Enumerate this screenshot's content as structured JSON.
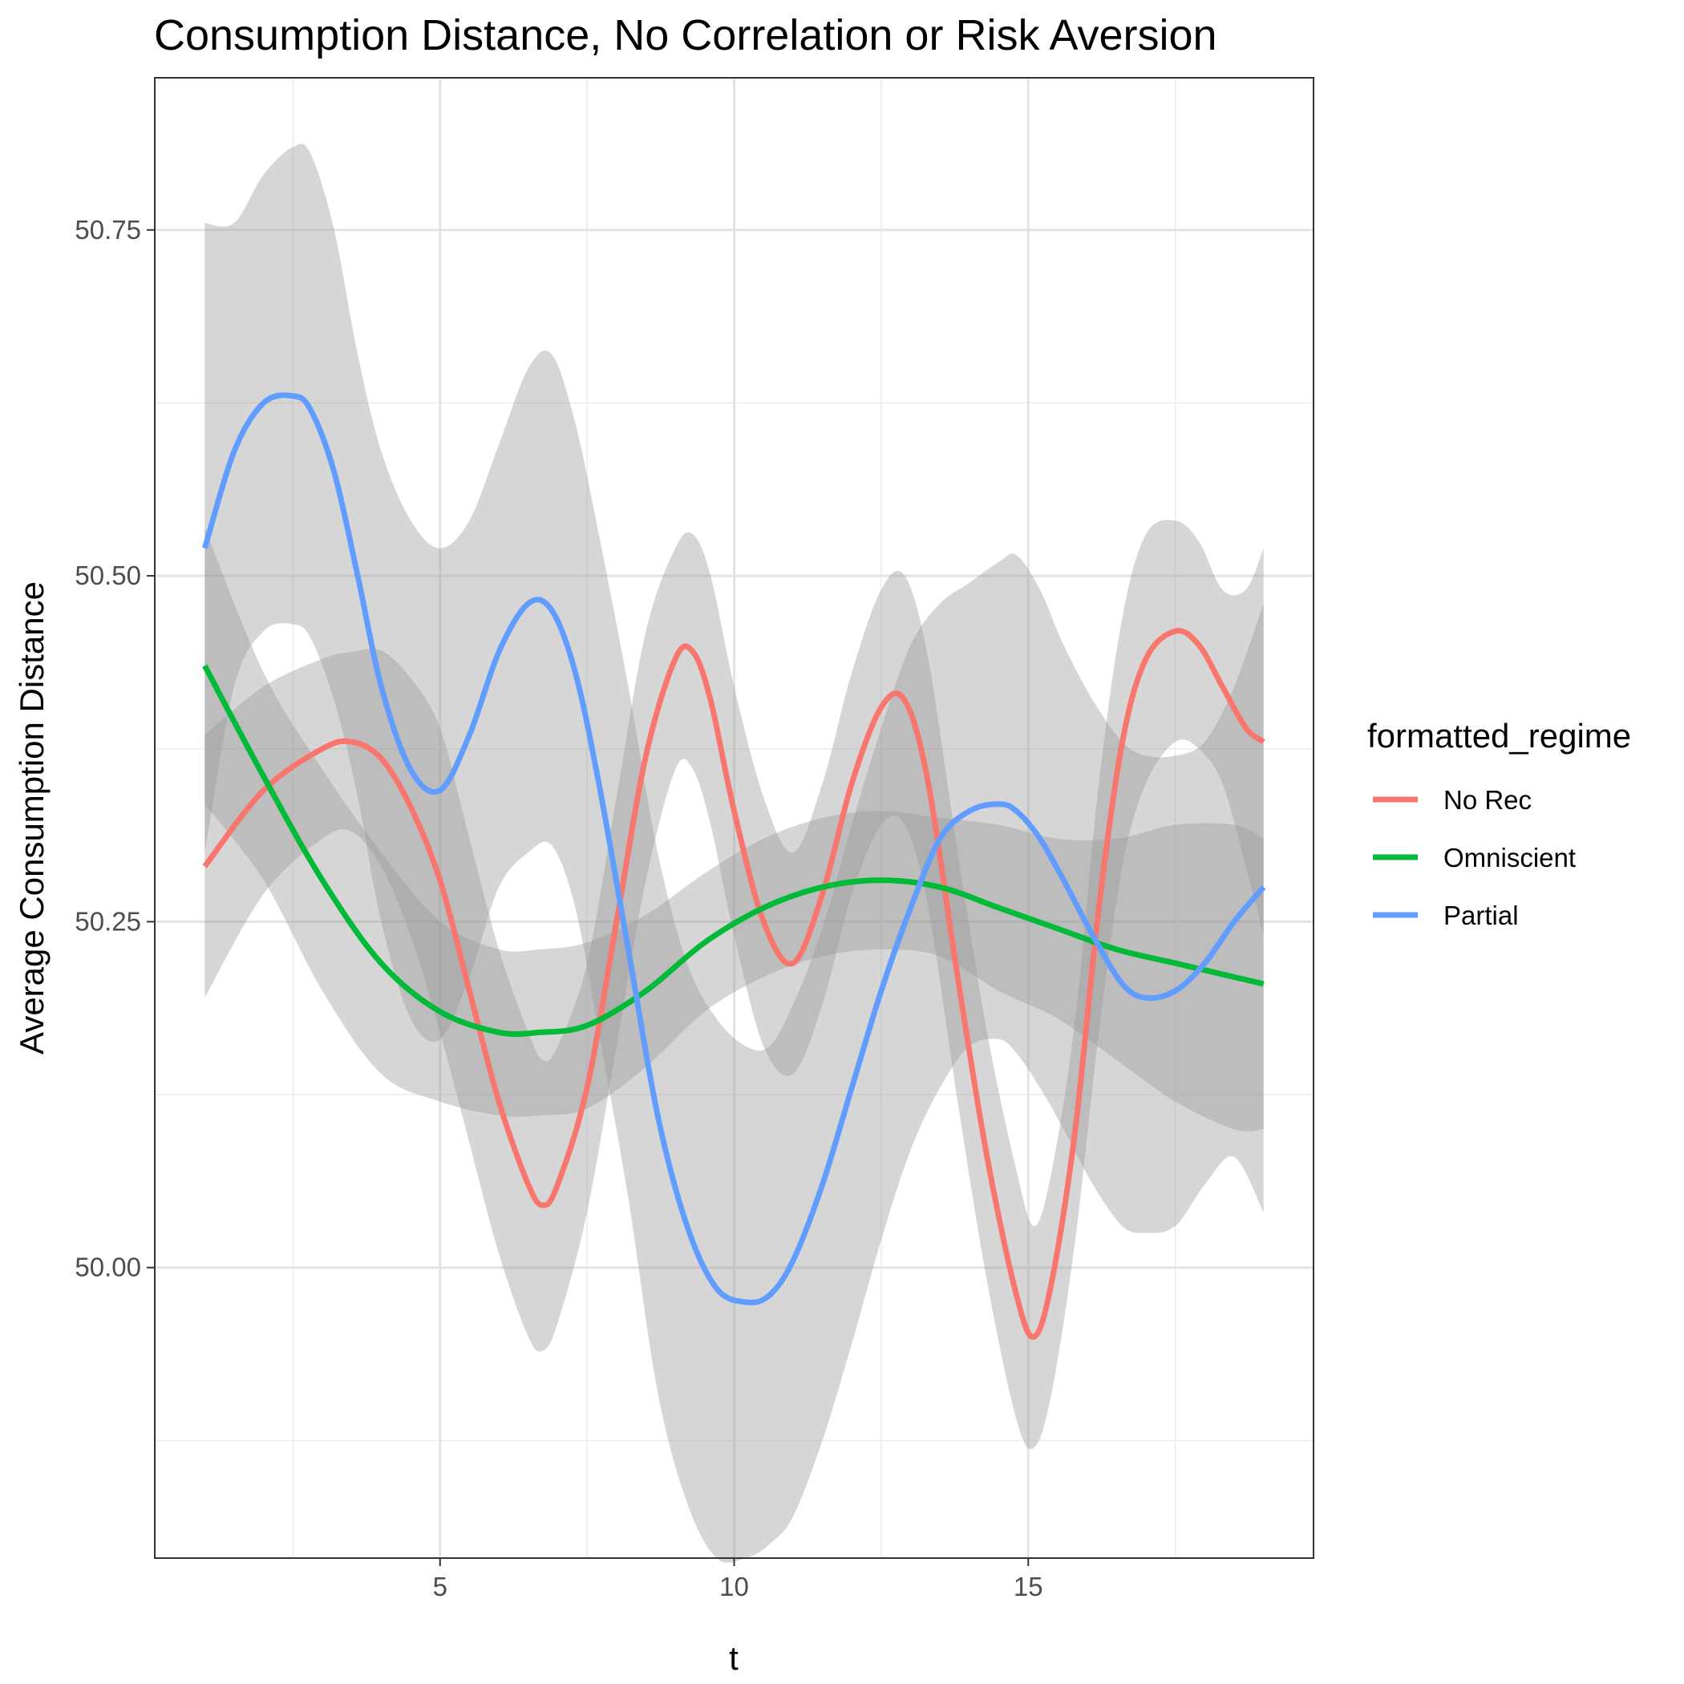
{
  "chart_data": {
    "type": "line",
    "title": "Consumption Distance, No Correlation or Risk Aversion",
    "xlabel": "t",
    "ylabel": "Average Consumption Distance",
    "xlim": [
      0.15,
      19.85
    ],
    "ylim": [
      49.79,
      50.86
    ],
    "x_ticks": [
      5,
      10,
      15
    ],
    "x_tick_labels": [
      "5",
      "10",
      "15"
    ],
    "x_minor_ticks": [
      2.5,
      7.5,
      12.5,
      17.5
    ],
    "y_ticks": [
      50.0,
      50.25,
      50.5,
      50.75
    ],
    "y_tick_labels": [
      "50.00",
      "50.25",
      "50.50",
      "50.75"
    ],
    "y_minor_ticks": [
      49.875,
      50.125,
      50.375,
      50.625
    ],
    "grid": true,
    "legend": {
      "title": "formatted_regime",
      "position": "right"
    },
    "band_color": "#999999",
    "series": [
      {
        "name": "No Rec",
        "color": "#F8766D",
        "x": [
          1,
          2,
          3,
          3.5,
          4,
          4.5,
          5,
          5.5,
          6,
          6.5,
          6.75,
          7,
          7.5,
          8,
          8.5,
          9,
          9.3,
          9.6,
          10,
          10.5,
          11,
          11.5,
          12,
          12.5,
          12.9,
          13.3,
          13.8,
          14.3,
          14.8,
          15.1,
          15.4,
          15.8,
          16.2,
          16.6,
          17,
          17.5,
          17.9,
          18.3,
          18.7,
          19
        ],
        "y": [
          50.29,
          50.345,
          50.375,
          50.38,
          50.368,
          50.333,
          50.28,
          50.2,
          50.12,
          50.06,
          50.045,
          50.06,
          50.13,
          50.25,
          50.37,
          50.44,
          50.445,
          50.41,
          50.33,
          50.25,
          50.22,
          50.27,
          50.35,
          50.405,
          50.41,
          50.35,
          50.21,
          50.08,
          49.98,
          49.95,
          49.99,
          50.1,
          50.26,
          50.38,
          50.44,
          50.46,
          50.45,
          50.42,
          50.39,
          50.38
        ],
        "lower": [
          50.195,
          50.27,
          50.31,
          50.315,
          50.29,
          50.24,
          50.17,
          50.09,
          50.01,
          49.95,
          49.94,
          49.96,
          50.04,
          50.16,
          50.28,
          50.36,
          50.36,
          50.32,
          50.24,
          50.16,
          50.14,
          50.19,
          50.27,
          50.32,
          50.32,
          50.26,
          50.12,
          49.99,
          49.89,
          49.87,
          49.91,
          50.02,
          50.17,
          50.29,
          50.35,
          50.38,
          50.375,
          50.35,
          50.29,
          50.24
        ],
        "upper": [
          50.385,
          50.42,
          50.44,
          50.445,
          50.446,
          50.426,
          50.39,
          50.31,
          50.23,
          50.17,
          50.15,
          50.16,
          50.22,
          50.34,
          50.46,
          50.52,
          50.53,
          50.5,
          50.42,
          50.34,
          50.3,
          50.35,
          50.43,
          50.49,
          50.5,
          50.44,
          50.3,
          50.17,
          50.07,
          50.03,
          50.07,
          50.18,
          50.35,
          50.47,
          50.53,
          50.54,
          50.525,
          50.49,
          50.49,
          50.52
        ]
      },
      {
        "name": "Omniscient",
        "color": "#00BA38",
        "x": [
          1,
          2,
          3,
          4,
          5,
          6,
          6.7,
          7.5,
          8.5,
          9.5,
          10.5,
          11.5,
          12.5,
          13.5,
          14.5,
          15.5,
          16.5,
          17.5,
          18.5,
          19
        ],
        "y": [
          50.435,
          50.355,
          50.28,
          50.22,
          50.185,
          50.17,
          50.17,
          50.175,
          50.2,
          50.235,
          50.26,
          50.275,
          50.28,
          50.275,
          50.26,
          50.245,
          50.23,
          50.22,
          50.21,
          50.205
        ],
        "lower": [
          50.335,
          50.28,
          50.2,
          50.14,
          50.12,
          50.11,
          50.11,
          50.115,
          50.145,
          50.185,
          50.21,
          50.225,
          50.23,
          50.225,
          50.2,
          50.18,
          50.15,
          50.12,
          50.1,
          50.1
        ],
        "upper": [
          50.535,
          50.43,
          50.36,
          50.3,
          50.25,
          50.23,
          50.23,
          50.235,
          50.255,
          50.285,
          50.31,
          50.325,
          50.33,
          50.325,
          50.32,
          50.31,
          50.31,
          50.32,
          50.32,
          50.31
        ]
      },
      {
        "name": "Partial",
        "color": "#619CFF",
        "x": [
          1,
          1.5,
          2,
          2.5,
          2.8,
          3.2,
          3.6,
          4,
          4.5,
          5,
          5.5,
          6,
          6.5,
          6.9,
          7.3,
          7.7,
          8.2,
          8.7,
          9.2,
          9.7,
          10.2,
          10.6,
          11,
          11.5,
          12,
          12.5,
          13,
          13.5,
          14,
          14.5,
          14.8,
          15.2,
          15.6,
          16.1,
          16.6,
          17,
          17.5,
          18,
          18.5,
          19
        ],
        "y": [
          50.52,
          50.59,
          50.625,
          50.63,
          50.62,
          50.575,
          50.5,
          50.42,
          50.36,
          50.345,
          50.385,
          50.445,
          50.48,
          50.475,
          50.43,
          50.35,
          50.23,
          50.11,
          50.03,
          49.985,
          49.975,
          49.98,
          50.005,
          50.06,
          50.13,
          50.2,
          50.26,
          50.31,
          50.33,
          50.335,
          50.33,
          50.31,
          50.28,
          50.24,
          50.205,
          50.195,
          50.2,
          50.22,
          50.25,
          50.275
        ],
        "lower": [
          50.3,
          50.42,
          50.46,
          50.465,
          50.455,
          50.41,
          50.34,
          50.25,
          50.18,
          50.165,
          50.21,
          50.275,
          50.3,
          50.305,
          50.26,
          50.17,
          50.05,
          49.91,
          49.83,
          49.79,
          49.79,
          49.8,
          49.82,
          49.875,
          49.945,
          50.02,
          50.085,
          50.13,
          50.16,
          50.165,
          50.155,
          50.13,
          50.1,
          50.06,
          50.03,
          50.025,
          50.03,
          50.06,
          50.08,
          50.04
        ],
        "upper": [
          50.755,
          50.755,
          50.79,
          50.81,
          50.805,
          50.75,
          50.66,
          50.59,
          50.54,
          50.52,
          50.54,
          50.595,
          50.65,
          50.66,
          50.61,
          50.53,
          50.42,
          50.3,
          50.22,
          50.18,
          50.16,
          50.16,
          50.19,
          50.245,
          50.32,
          50.39,
          50.45,
          50.48,
          50.495,
          50.51,
          50.515,
          50.49,
          50.45,
          50.41,
          50.38,
          50.37,
          50.37,
          50.38,
          50.42,
          50.48
        ]
      }
    ]
  }
}
